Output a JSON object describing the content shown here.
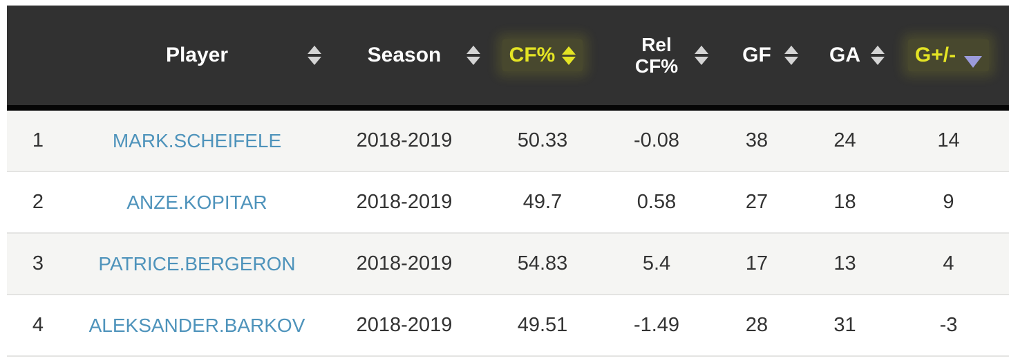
{
  "table": {
    "columns": {
      "rank": {
        "label": ""
      },
      "player": {
        "label": "Player",
        "sortable": true,
        "sort_state": "none",
        "highlighted": false
      },
      "season": {
        "label": "Season",
        "sortable": true,
        "sort_state": "none",
        "highlighted": false
      },
      "cf_pct": {
        "label": "CF%",
        "sortable": true,
        "sort_state": "none",
        "highlighted": true
      },
      "rel_cf_pct": {
        "label": "Rel CF%",
        "label_line1": "Rel",
        "label_line2": "CF%",
        "sortable": true,
        "sort_state": "none",
        "highlighted": false
      },
      "gf": {
        "label": "GF",
        "sortable": true,
        "sort_state": "none",
        "highlighted": false
      },
      "ga": {
        "label": "GA",
        "sortable": true,
        "sort_state": "none",
        "highlighted": false
      },
      "g_plus_minus": {
        "label": "G+/-",
        "sortable": true,
        "sort_state": "desc",
        "highlighted": true
      }
    },
    "rows": [
      {
        "rank": "1",
        "player": "MARK.SCHEIFELE",
        "season": "2018-2019",
        "cf_pct": "50.33",
        "rel_cf_pct": "-0.08",
        "gf": "38",
        "ga": "24",
        "g_plus_minus": "14"
      },
      {
        "rank": "2",
        "player": "ANZE.KOPITAR",
        "season": "2018-2019",
        "cf_pct": "49.7",
        "rel_cf_pct": "0.58",
        "gf": "27",
        "ga": "18",
        "g_plus_minus": "9"
      },
      {
        "rank": "3",
        "player": "PATRICE.BERGERON",
        "season": "2018-2019",
        "cf_pct": "54.83",
        "rel_cf_pct": "5.4",
        "gf": "17",
        "ga": "13",
        "g_plus_minus": "4"
      },
      {
        "rank": "4",
        "player": "ALEKSANDER.BARKOV",
        "season": "2018-2019",
        "cf_pct": "49.51",
        "rel_cf_pct": "-1.49",
        "gf": "28",
        "ga": "31",
        "g_plus_minus": "-3"
      }
    ],
    "colors": {
      "header_background": "#313131",
      "header_text": "#fdfdfd",
      "highlight_yellow": "#e4e424",
      "sort_arrow_gray": "#d4d4d4",
      "sort_arrow_lavender": "#9b9bdb",
      "player_link_blue": "#4e93bb",
      "row_stripe": "#f5f5f3",
      "data_text": "#333333"
    }
  }
}
